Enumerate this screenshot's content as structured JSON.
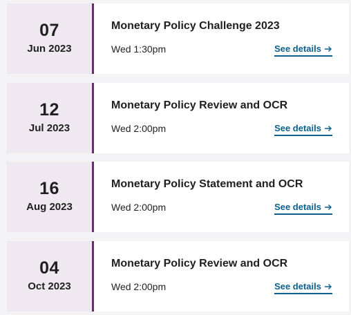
{
  "events": [
    {
      "day": "07",
      "month": "Jun 2023",
      "title": "Monetary Policy Challenge 2023",
      "time": "Wed 1:30pm",
      "link": "See details"
    },
    {
      "day": "12",
      "month": "Jul 2023",
      "title": "Monetary Policy Review and OCR",
      "time": "Wed 2:00pm",
      "link": "See details"
    },
    {
      "day": "16",
      "month": "Aug 2023",
      "title": "Monetary Policy Statement and OCR",
      "time": "Wed 2:00pm",
      "link": "See details"
    },
    {
      "day": "04",
      "month": "Oct 2023",
      "title": "Monetary Policy Review and OCR",
      "time": "Wed 2:00pm",
      "link": "See details"
    }
  ],
  "colors": {
    "accent": "#6b2a72",
    "date_bg": "#efe8f1",
    "link": "#0b5f8a",
    "page_bg": "#f3f3f6"
  },
  "icons": {
    "link_icon": "arrow-right-icon"
  }
}
